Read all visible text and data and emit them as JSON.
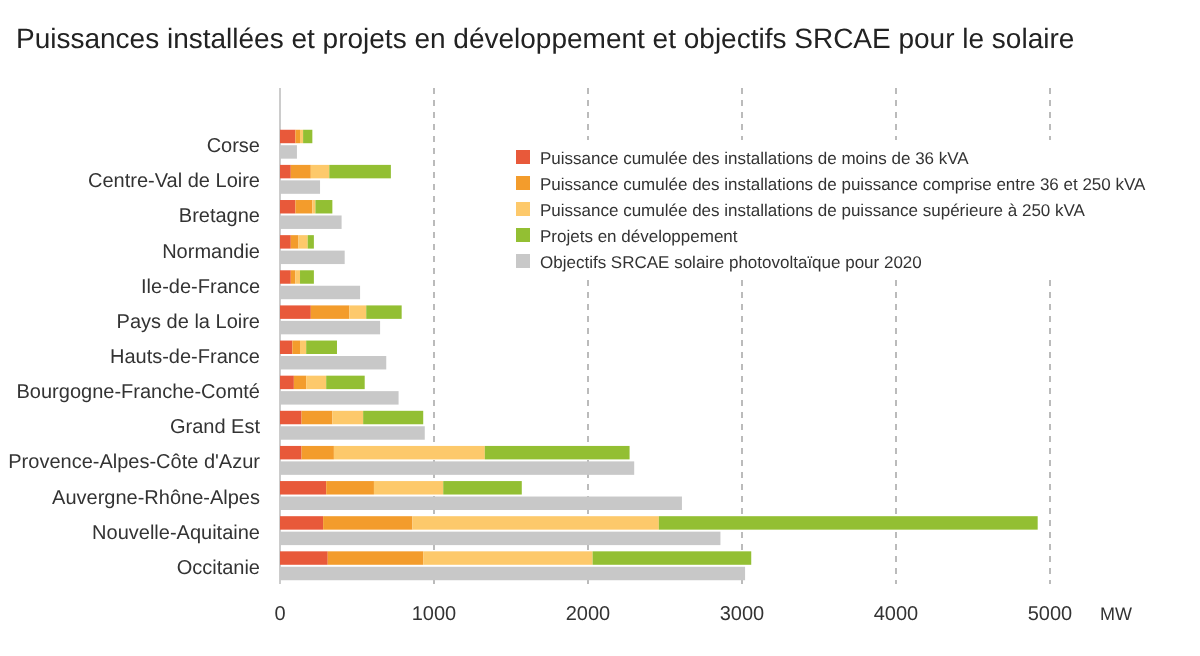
{
  "chart_data": {
    "type": "bar",
    "orientation": "horizontal",
    "title": "Puissances installées et projets en développement et objectifs SRCAE pour le solaire",
    "xlabel": "MW",
    "categories": [
      "Corse",
      "Centre-Val de Loire",
      "Bretagne",
      "Normandie",
      "Ile-de-France",
      "Pays de la Loire",
      "Hauts-de-France",
      "Bourgogne-Franche-Comté",
      "Grand Est",
      "Provence-Alpes-Côte d'Azur",
      "Auvergne-Rhône-Alpes",
      "Nouvelle-Aquitaine",
      "Occitanie"
    ],
    "series": [
      {
        "name": "Puissance cumulée des installations de moins de 36 kVA",
        "color": "#e8593a",
        "values": [
          100,
          70,
          100,
          70,
          70,
          200,
          80,
          90,
          140,
          140,
          300,
          280,
          310
        ],
        "base": [
          0,
          0,
          0,
          0,
          0,
          0,
          0,
          0,
          0,
          0,
          0,
          0,
          0
        ]
      },
      {
        "name": "Puissance cumulée des installations de puissance comprise entre 36 et 250 kVA",
        "color": "#f39c2c",
        "values": [
          30,
          130,
          110,
          50,
          30,
          250,
          50,
          80,
          200,
          210,
          310,
          580,
          620
        ],
        "base": [
          100,
          70,
          100,
          70,
          70,
          200,
          80,
          90,
          140,
          140,
          300,
          280,
          310
        ]
      },
      {
        "name": "Puissance cumulée des installations de puissance supérieure à 250 kVA",
        "color": "#fdc96b",
        "values": [
          20,
          120,
          20,
          60,
          30,
          110,
          40,
          130,
          200,
          980,
          450,
          1600,
          1100
        ],
        "base": [
          130,
          200,
          210,
          120,
          100,
          450,
          130,
          170,
          340,
          350,
          610,
          860,
          930
        ]
      },
      {
        "name": "Projets en développement",
        "color": "#93bf33",
        "values": [
          60,
          400,
          110,
          40,
          90,
          230,
          200,
          250,
          390,
          940,
          510,
          2460,
          1030
        ],
        "base": [
          150,
          320,
          230,
          180,
          130,
          560,
          170,
          300,
          540,
          1330,
          1060,
          2460,
          2030
        ]
      },
      {
        "name": "Objectifs SRCAE solaire photovoltaïque pour 2020",
        "color": "#c8c8c8",
        "values": [
          110,
          260,
          400,
          420,
          520,
          650,
          690,
          770,
          940,
          2300,
          2610,
          2860,
          3020
        ]
      }
    ],
    "xlim": [
      0,
      5000
    ],
    "xticks": [
      0,
      1000,
      2000,
      3000,
      4000,
      5000
    ],
    "grid": "x",
    "legend": "top right"
  }
}
